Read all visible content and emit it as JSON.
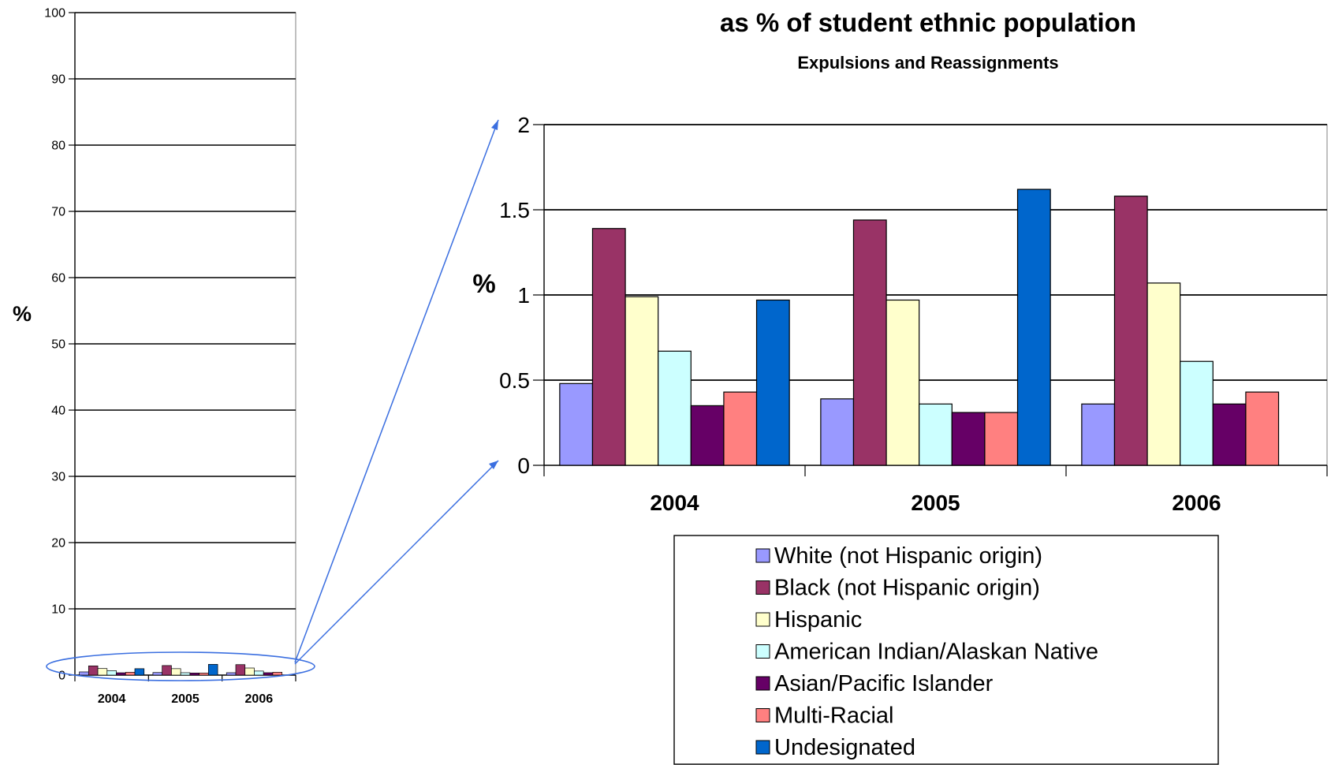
{
  "chart_data": [
    {
      "type": "bar",
      "title": "",
      "ylabel": "%",
      "ylim": [
        0,
        100
      ],
      "yticks": [
        0,
        10,
        20,
        30,
        40,
        50,
        60,
        70,
        80,
        90,
        100
      ],
      "categories": [
        "2004",
        "2005",
        "2006"
      ],
      "grid": true,
      "legend": "none",
      "series": [
        {
          "name": "White (not Hispanic origin)",
          "color": "#9999ff",
          "values": [
            0.48,
            0.39,
            0.36
          ]
        },
        {
          "name": "Black (not Hispanic origin)",
          "color": "#993366",
          "values": [
            1.39,
            1.44,
            1.58
          ]
        },
        {
          "name": "Hispanic",
          "color": "#ffffcc",
          "values": [
            0.99,
            0.97,
            1.07
          ]
        },
        {
          "name": "American Indian/Alaskan Native",
          "color": "#ccffff",
          "values": [
            0.67,
            0.36,
            0.61
          ]
        },
        {
          "name": "Asian/Pacific Islander",
          "color": "#660066",
          "values": [
            0.35,
            0.31,
            0.36
          ]
        },
        {
          "name": "Multi-Racial",
          "color": "#ff8080",
          "values": [
            0.43,
            0.31,
            0.43
          ]
        },
        {
          "name": "Undesignated",
          "color": "#0066cc",
          "values": [
            0.97,
            1.62,
            null
          ]
        }
      ]
    },
    {
      "type": "bar",
      "title": "as % of student ethnic population",
      "subtitle": "Expulsions and Reassignments",
      "ylabel": "%",
      "ylim": [
        0,
        2
      ],
      "yticks": [
        "0",
        "0.5",
        "1",
        "1.5",
        "2"
      ],
      "categories": [
        "2004",
        "2005",
        "2006"
      ],
      "grid": true,
      "legend": "bottom-right",
      "series": [
        {
          "name": "White (not Hispanic origin)",
          "color": "#9999ff",
          "values": [
            0.48,
            0.39,
            0.36
          ]
        },
        {
          "name": "Black (not Hispanic origin)",
          "color": "#993366",
          "values": [
            1.39,
            1.44,
            1.58
          ]
        },
        {
          "name": "Hispanic",
          "color": "#ffffcc",
          "values": [
            0.99,
            0.97,
            1.07
          ]
        },
        {
          "name": "American Indian/Alaskan Native",
          "color": "#ccffff",
          "values": [
            0.67,
            0.36,
            0.61
          ]
        },
        {
          "name": "Asian/Pacific Islander",
          "color": "#660066",
          "values": [
            0.35,
            0.31,
            0.36
          ]
        },
        {
          "name": "Multi-Racial",
          "color": "#ff8080",
          "values": [
            0.43,
            0.31,
            0.43
          ]
        },
        {
          "name": "Undesignated",
          "color": "#0066cc",
          "values": [
            0.97,
            1.62,
            null
          ]
        }
      ]
    }
  ]
}
